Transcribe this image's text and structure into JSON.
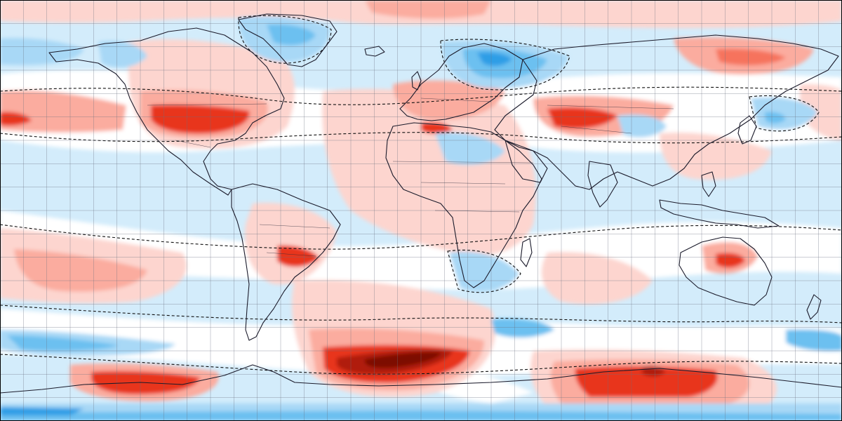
{
  "map": {
    "projection": "equirectangular",
    "extent": {
      "lon": [
        -180,
        180
      ],
      "lat": [
        -90,
        90
      ]
    },
    "graticule_step_deg": 10,
    "graticule_visible": true,
    "coastlines_visible": true,
    "country_borders_visible": true,
    "zero_contour_style": "dashed-black",
    "frame_color": "#000000"
  },
  "palette": {
    "near_zero": "#ffffff",
    "warm": [
      "#fdd5cf",
      "#fbac9f",
      "#f6735d",
      "#e8341c",
      "#b01a0a",
      "#7d0d05"
    ],
    "cool": [
      "#d3ecfb",
      "#a8d8f6",
      "#6cc0f0",
      "#2f9ee6",
      "#1372c4"
    ]
  },
  "anomaly_levels": [
    -5,
    -4,
    -3,
    -2,
    -1,
    0,
    1,
    2,
    3,
    4,
    5,
    6
  ]
}
